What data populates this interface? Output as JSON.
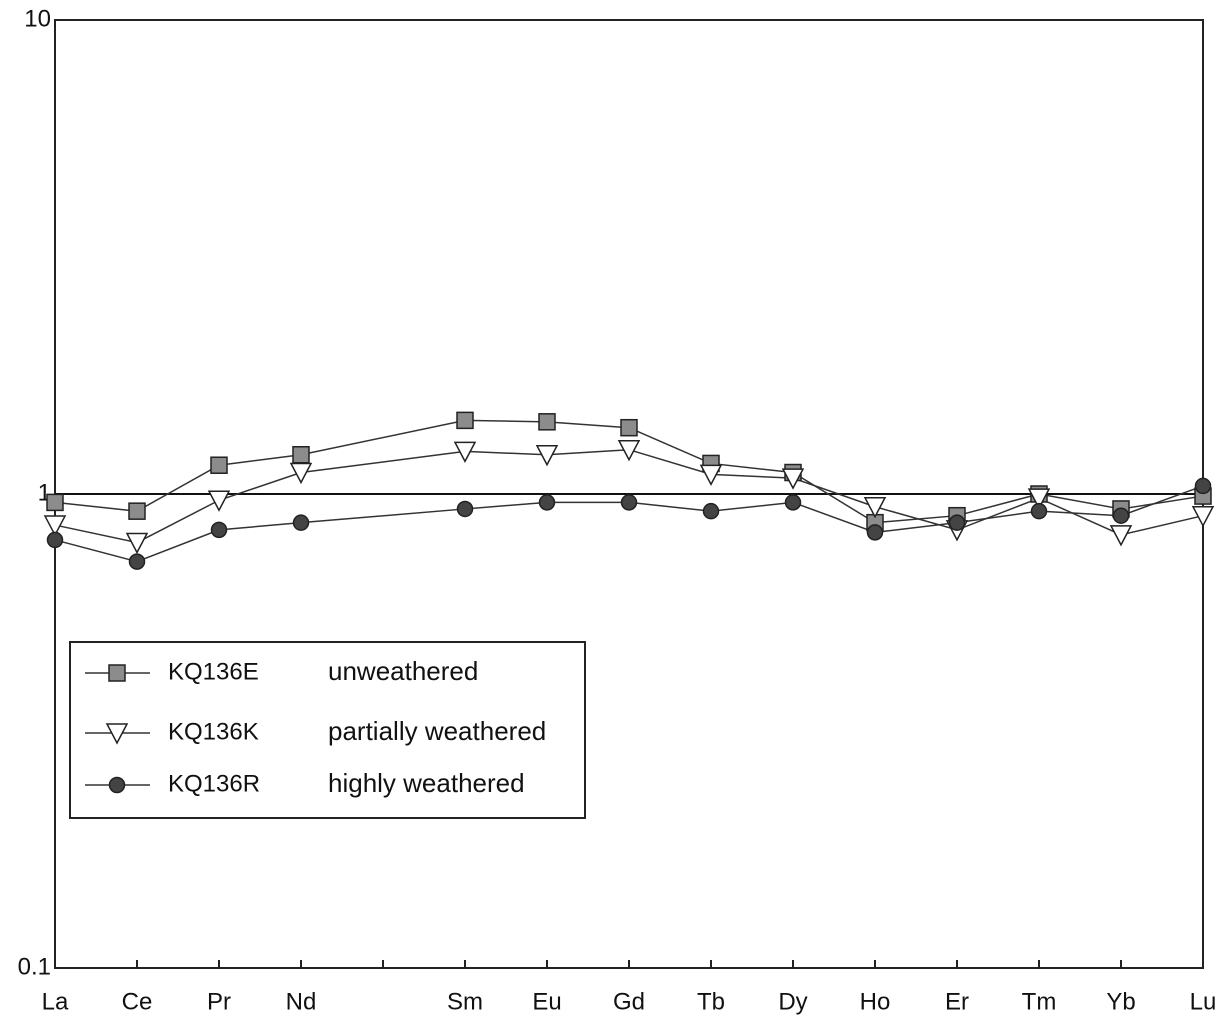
{
  "chart_data": {
    "type": "line",
    "categories": [
      "La",
      "Ce",
      "Pr",
      "Nd",
      null,
      "Sm",
      "Eu",
      "Gd",
      "Tb",
      "Dy",
      "Ho",
      "Er",
      "Tm",
      "Yb",
      "Lu"
    ],
    "series": [
      {
        "name": "KQ136E",
        "description": "unweathered",
        "marker": "square",
        "color": "#8c8c8c",
        "values": [
          0.96,
          0.92,
          1.15,
          1.21,
          null,
          1.43,
          1.42,
          1.38,
          1.16,
          1.11,
          0.87,
          0.9,
          1.0,
          0.93,
          0.99
        ]
      },
      {
        "name": "KQ136K",
        "description": "partially weathered",
        "marker": "triangle-down",
        "color": "#ffffff",
        "values": [
          0.86,
          0.79,
          0.97,
          1.11,
          null,
          1.23,
          1.21,
          1.24,
          1.1,
          1.08,
          0.94,
          0.84,
          0.98,
          0.82,
          0.9
        ]
      },
      {
        "name": "KQ136R",
        "description": "highly weathered",
        "marker": "circle",
        "color": "#444444",
        "values": [
          0.8,
          0.72,
          0.84,
          0.87,
          null,
          0.93,
          0.96,
          0.96,
          0.92,
          0.96,
          0.83,
          0.87,
          0.92,
          0.9,
          1.04
        ]
      }
    ],
    "ylim": [
      0.1,
      10
    ],
    "yticks": [
      0.1,
      1,
      10
    ],
    "log_y": true,
    "reference_line": 1,
    "legend": "lower-left"
  }
}
